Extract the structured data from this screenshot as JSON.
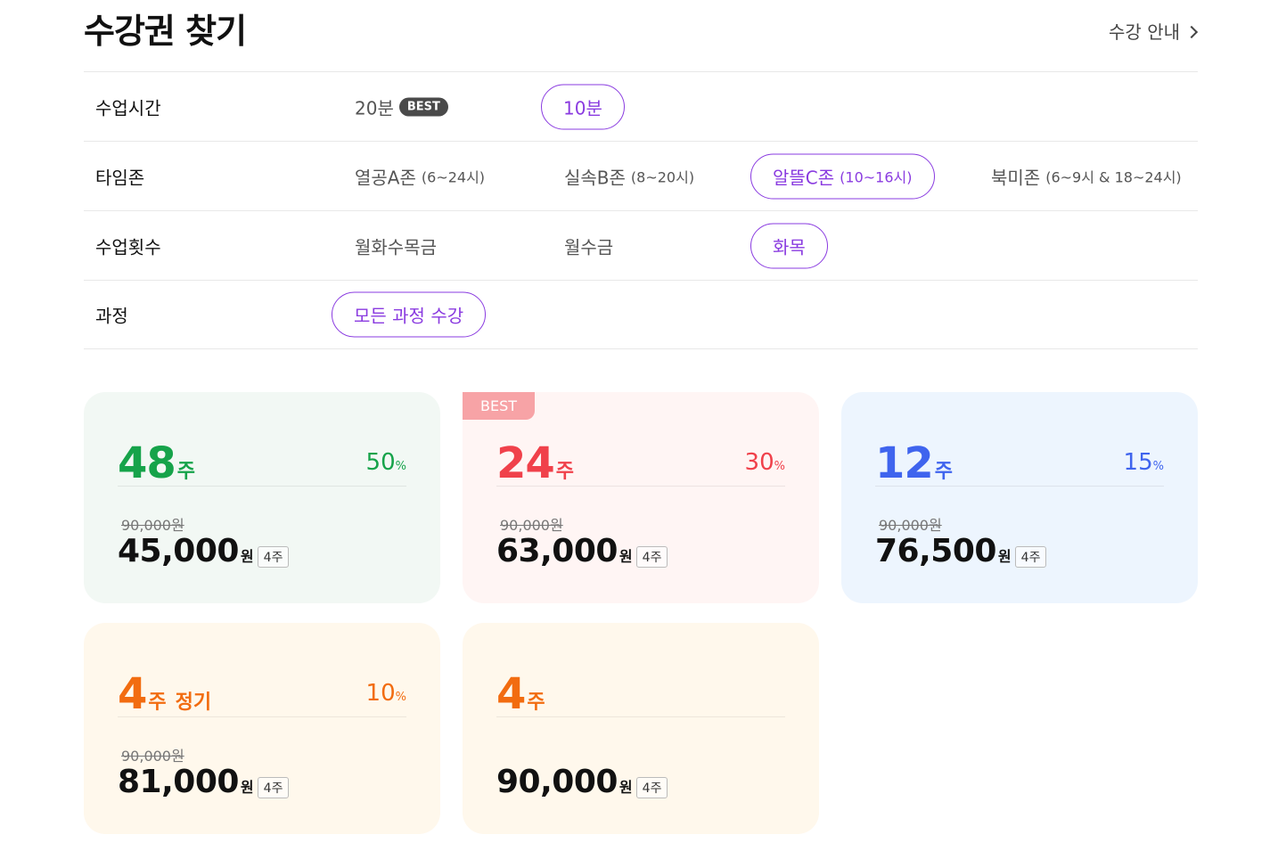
{
  "header": {
    "title": "수강권 찾기",
    "guide_link": "수강 안내"
  },
  "filters": {
    "time": {
      "label": "수업시간",
      "options": [
        {
          "label": "20분",
          "badge": "BEST"
        },
        {
          "label": "10분"
        }
      ],
      "selected": "10분"
    },
    "zone": {
      "label": "타임존",
      "options": [
        {
          "label": "열공A존",
          "sub": "(6~24시)"
        },
        {
          "label": "실속B존",
          "sub": "(8~20시)"
        },
        {
          "label": "알뜰C존",
          "sub": "(10~16시)"
        },
        {
          "label": "북미존",
          "sub": "(6~9시 & 18~24시)"
        }
      ],
      "selected": "알뜰C존"
    },
    "freq": {
      "label": "수업횟수",
      "options": [
        {
          "label": "월화수목금"
        },
        {
          "label": "월수금"
        },
        {
          "label": "화목"
        }
      ],
      "selected": "화목"
    },
    "course": {
      "label": "과정",
      "options": [
        {
          "label": "모든 과정 수강"
        }
      ],
      "selected": "모든 과정 수강"
    }
  },
  "plans": [
    {
      "weeks": "48",
      "unit": "주",
      "discount": "50",
      "pct": "%",
      "original": "90,000원",
      "price": "45,000",
      "won": "원",
      "per": "4주",
      "color": "green"
    },
    {
      "weeks": "24",
      "unit": "주",
      "discount": "30",
      "pct": "%",
      "original": "90,000원",
      "price": "63,000",
      "won": "원",
      "per": "4주",
      "badge": "BEST",
      "color": "pink"
    },
    {
      "weeks": "12",
      "unit": "주",
      "discount": "15",
      "pct": "%",
      "original": "90,000원",
      "price": "76,500",
      "won": "원",
      "per": "4주",
      "color": "blue"
    },
    {
      "weeks": "4",
      "unit": "주",
      "extra": "정기",
      "discount": "10",
      "pct": "%",
      "original": "90,000원",
      "price": "81,000",
      "won": "원",
      "per": "4주",
      "color": "orange"
    },
    {
      "weeks": "4",
      "unit": "주",
      "price": "90,000",
      "won": "원",
      "per": "4주",
      "color": "orange"
    }
  ]
}
